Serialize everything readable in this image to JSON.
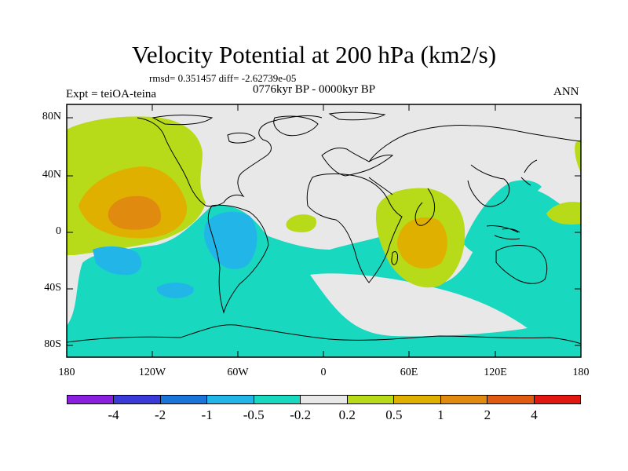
{
  "title": "Velocity Potential at 200 hPa (km2/s)",
  "stats": "rmsd= 0.351457 diff= -2.62739e-05",
  "experiment": "Expt = teiOA-teina",
  "period": "0776kyr BP - 0000kyr BP",
  "season": "ANN",
  "lat_ticks": [
    "80N",
    "40N",
    "0",
    "40S",
    "80S"
  ],
  "lon_ticks": [
    "180",
    "120W",
    "60W",
    "0",
    "60E",
    "120E",
    "180"
  ],
  "colorbar": {
    "colors": [
      "#8a1fe0",
      "#3a3ad8",
      "#1b74d8",
      "#22b6e8",
      "#18d8c0",
      "#e8e8e8",
      "#b7db18",
      "#e0b000",
      "#e08a10",
      "#e05a10",
      "#e01810"
    ],
    "labels": [
      "-4",
      "-2",
      "-1",
      "-0.5",
      "-0.2",
      "0.2",
      "0.5",
      "1",
      "2",
      "4"
    ]
  }
}
